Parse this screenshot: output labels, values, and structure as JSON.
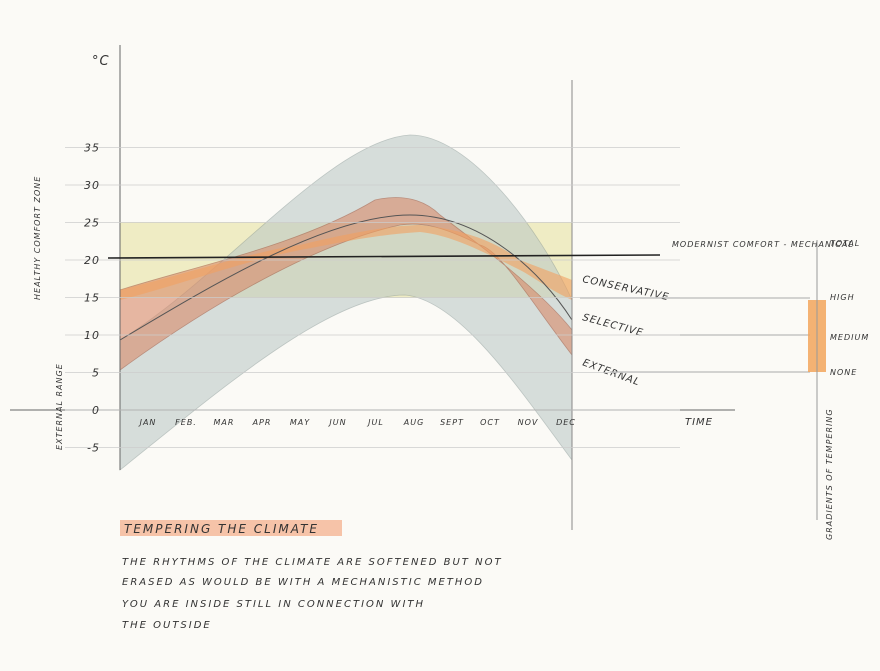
{
  "axes": {
    "y_unit": "°C",
    "x_label": "TIME",
    "yticks": [
      35,
      30,
      25,
      20,
      15,
      10,
      5,
      0,
      -5
    ],
    "months": [
      "JAN",
      "FEB.",
      "MAR",
      "APR",
      "MAY",
      "JUN",
      "JUL",
      "AUG",
      "SEPT",
      "OCT",
      "NOV",
      "DEC"
    ]
  },
  "side_labels": {
    "comfort_zone": "HEALTHY COMFORT ZONE",
    "external_range": "EXTERNAL RANGE"
  },
  "curves": {
    "modernist": "MODERNIST COMFORT - MECHANICAL",
    "conservative": "CONSERVATIVE",
    "selective": "SELECTIVE",
    "external": "EXTERNAL"
  },
  "gradients": {
    "title": "GRADIENTS OF TEMPERING",
    "levels": [
      "TOTAL",
      "HIGH",
      "MEDIUM",
      "NONE"
    ]
  },
  "note": {
    "title": "TEMPERING THE CLIMATE",
    "lines": [
      "THE RHYTHMS OF THE CLIMATE ARE SOFTENED BUT NOT",
      "ERASED AS WOULD BE WITH A MECHANISTIC METHOD",
      "YOU ARE INSIDE STILL IN CONNECTION WITH",
      "THE OUTSIDE"
    ]
  }
}
